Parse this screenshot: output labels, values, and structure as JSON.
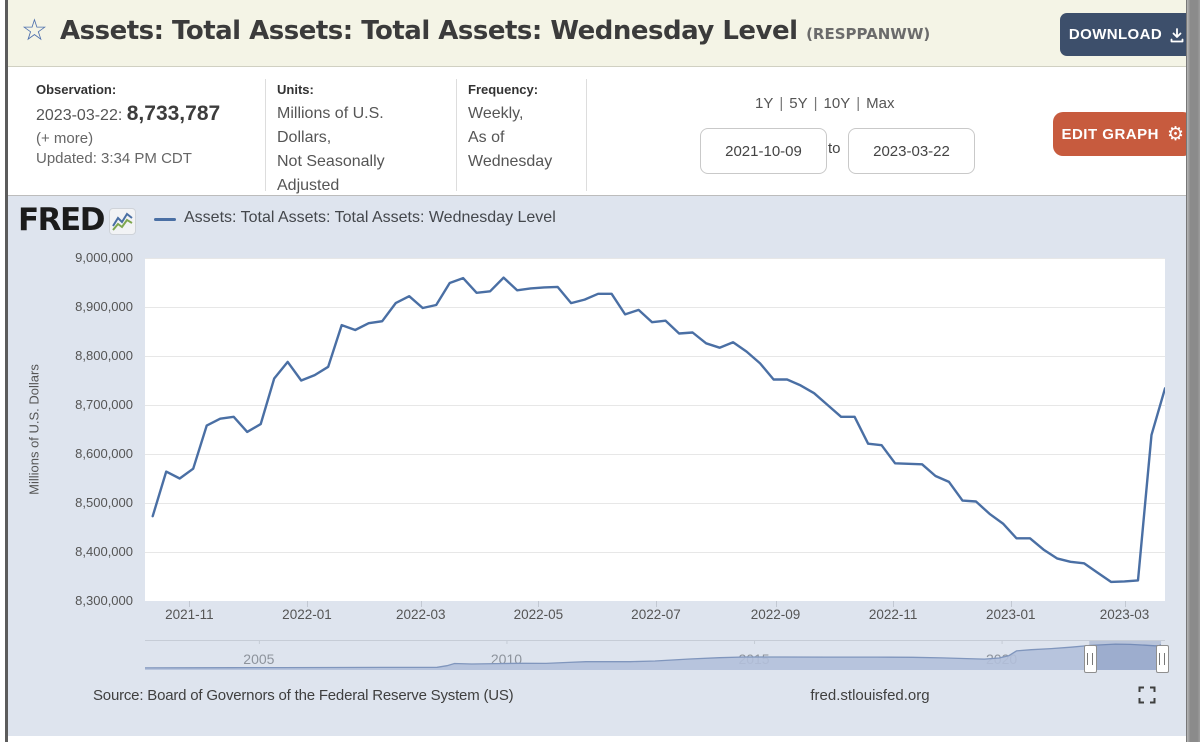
{
  "header": {
    "title": "Assets: Total Assets: Total Assets: Wednesday Level",
    "series_id": "(RESPPANWW)",
    "download_label": "DOWNLOAD"
  },
  "info": {
    "observation": {
      "label": "Observation:",
      "date": "2023-03-22:",
      "value": "8,733,787",
      "more": "(+ more)",
      "updated": "Updated: 3:34 PM CDT"
    },
    "units": {
      "label": "Units:",
      "lines": [
        "Millions of U.S.",
        "Dollars,",
        "Not Seasonally",
        "Adjusted"
      ]
    },
    "frequency": {
      "label": "Frequency:",
      "lines": [
        "Weekly,",
        "As of",
        "Wednesday"
      ]
    },
    "range": {
      "presets": [
        "1Y",
        "5Y",
        "10Y",
        "Max"
      ],
      "separator": "|",
      "start": "2021-10-09",
      "to_label": "to",
      "end": "2023-03-22"
    },
    "edit_label": "EDIT GRAPH"
  },
  "graph": {
    "brand": "FRED",
    "legend": "Assets: Total Assets: Total Assets: Wednesday Level",
    "y_axis_title": "Millions of U.S. Dollars",
    "source": "Source: Board of Governors of the Federal Reserve System (US)",
    "site": "fred.stlouisfed.org"
  },
  "colors": {
    "line_blue": "#4a6fa4",
    "header_cream": "#f4f4e6",
    "chart_bg": "#dee4ee",
    "download_navy": "#3d4f6b",
    "edit_orange": "#c75b3e",
    "mini_area_fill": "#b3c0da",
    "mini_area_line": "#8096bd",
    "gridline": "#e7e7e7"
  },
  "chart_data": [
    {
      "type": "line",
      "title": "Assets: Total Assets: Total Assets: Wednesday Level",
      "ylabel": "Millions of U.S. Dollars",
      "xlabel": "",
      "frequency": "weekly",
      "start_date": "2021-10-13",
      "end_date": "2023-03-22",
      "x_domain": [
        "2021-10-09",
        "2023-03-22"
      ],
      "ylim": [
        8300000,
        9000000
      ],
      "yticks": [
        8300000,
        8400000,
        8500000,
        8600000,
        8700000,
        8800000,
        8900000,
        9000000
      ],
      "xticks": [
        "2021-11",
        "2022-01",
        "2022-03",
        "2022-05",
        "2022-07",
        "2022-09",
        "2022-11",
        "2023-01",
        "2023-03"
      ],
      "grid": "horizontal",
      "legend_position": "top",
      "values": [
        8473000,
        8564000,
        8550000,
        8570000,
        8658000,
        8672000,
        8676000,
        8645000,
        8661000,
        8754000,
        8788000,
        8750000,
        8761000,
        8778000,
        8863000,
        8853000,
        8867000,
        8871000,
        8908000,
        8922000,
        8898000,
        8904000,
        8949000,
        8959000,
        8929000,
        8932000,
        8960000,
        8934000,
        8938000,
        8940000,
        8941000,
        8908000,
        8915000,
        8927000,
        8927000,
        8885000,
        8894000,
        8869000,
        8872000,
        8846000,
        8848000,
        8826000,
        8817000,
        8828000,
        8809000,
        8785000,
        8752000,
        8752000,
        8740000,
        8724000,
        8700000,
        8676000,
        8676000,
        8621000,
        8618000,
        8581000,
        8580000,
        8579000,
        8555000,
        8543000,
        8505000,
        8503000,
        8478000,
        8458000,
        8428000,
        8428000,
        8405000,
        8387000,
        8380000,
        8377000,
        8358000,
        8339000,
        8340000,
        8342000,
        8639000,
        8733787
      ]
    },
    {
      "type": "area",
      "role": "range-selector",
      "x_domain": [
        2002.7,
        2023.3
      ],
      "xticks": [
        2005,
        2010,
        2015,
        2020
      ],
      "x": [
        2002.7,
        2003.5,
        2004.5,
        2005.5,
        2006.5,
        2007.5,
        2008.6,
        2008.8,
        2008.95,
        2009.3,
        2009.8,
        2010.3,
        2010.8,
        2011.2,
        2011.6,
        2012.5,
        2013.0,
        2013.7,
        2014.3,
        2014.8,
        2015.5,
        2016.5,
        2017.5,
        2018.2,
        2018.8,
        2019.3,
        2019.65,
        2019.95,
        2020.15,
        2020.3,
        2020.6,
        2021.0,
        2021.4,
        2021.77,
        2022.1,
        2022.3,
        2022.6,
        2022.9,
        2023.1,
        2023.17,
        2023.22
      ],
      "values": [
        720000,
        760000,
        790000,
        830000,
        860000,
        890000,
        940000,
        1500000,
        2250000,
        2080000,
        2200000,
        2330000,
        2300000,
        2600000,
        2870000,
        2880000,
        3100000,
        3800000,
        4250000,
        4500000,
        4490000,
        4450000,
        4450000,
        4380000,
        4200000,
        3950000,
        3760000,
        4150000,
        5000000,
        6600000,
        7010000,
        7400000,
        7900000,
        8480000,
        8800000,
        8960000,
        8850000,
        8600000,
        8360000,
        8420000,
        8734000
      ],
      "vmax": 9000000,
      "selection": {
        "start": "2021-10-09",
        "end": "2023-03-22",
        "x_start": 2021.77,
        "x_end": 2023.22
      }
    }
  ]
}
